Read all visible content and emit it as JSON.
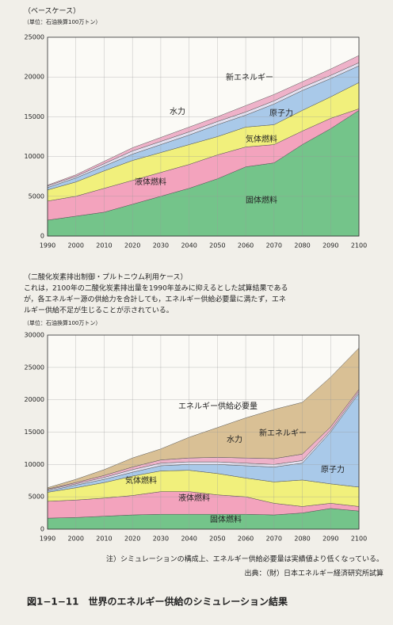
{
  "chart_data": [
    {
      "type": "stacked_area",
      "subtitle": "（ベースケース）",
      "unit": "（単位：石油換算100万トン）",
      "x": [
        1990,
        2000,
        2010,
        2020,
        2030,
        2040,
        2050,
        2060,
        2070,
        2080,
        2090,
        2100
      ],
      "xlim": [
        1990,
        2100
      ],
      "xticks": [
        1990,
        2000,
        2010,
        2020,
        2030,
        2040,
        2050,
        2060,
        2070,
        2080,
        2090,
        2100
      ],
      "ylim": [
        0,
        25000
      ],
      "yticks": [
        0,
        5000,
        10000,
        15000,
        20000,
        25000
      ],
      "grid": true,
      "series": [
        {
          "name": "固体燃料",
          "color": "#74c48a",
          "values": [
            2000,
            2500,
            3000,
            4000,
            5000,
            6000,
            7200,
            8700,
            9200,
            11500,
            13500,
            15800
          ]
        },
        {
          "name": "液体燃料",
          "color": "#f3a3bd",
          "values": [
            2400,
            2500,
            3000,
            3000,
            3000,
            3000,
            3000,
            2500,
            2300,
            1700,
            1300,
            200
          ]
        },
        {
          "name": "気体燃料",
          "color": "#f1f07c",
          "values": [
            1400,
            1800,
            2200,
            2500,
            2500,
            2500,
            2300,
            2500,
            2500,
            2600,
            2700,
            3300
          ]
        },
        {
          "name": "原子力",
          "color": "#a9c9e9",
          "values": [
            300,
            500,
            600,
            800,
            1000,
            1200,
            1500,
            1500,
            2600,
            2500,
            2300,
            2100
          ]
        },
        {
          "name": "水力",
          "color": "#e2e0f0",
          "values": [
            200,
            200,
            300,
            400,
            400,
            400,
            400,
            400,
            400,
            400,
            400,
            400
          ]
        },
        {
          "name": "新エネルギー",
          "color": "#eeb2c9",
          "values": [
            100,
            200,
            300,
            400,
            500,
            600,
            600,
            800,
            800,
            700,
            800,
            900
          ]
        }
      ]
    },
    {
      "type": "stacked_area",
      "subtitle": "（二酸化炭素排出制御・プルトニウム利用ケース）",
      "description": [
        "これは，2100年の二酸化炭素排出量を1990年並みに抑えるとした試算結果である",
        "が，各エネルギー源の供給力を合計しても，エネルギー供給必要量に満たず，エネ",
        "ルギー供給不足が生じることが示されている。"
      ],
      "unit": "（単位：石油換算100万トン）",
      "x": [
        1990,
        2000,
        2010,
        2020,
        2030,
        2040,
        2050,
        2060,
        2070,
        2080,
        2090,
        2100
      ],
      "xlim": [
        1990,
        2100
      ],
      "xticks": [
        1990,
        2000,
        2010,
        2020,
        2030,
        2040,
        2050,
        2060,
        2070,
        2080,
        2090,
        2100
      ],
      "ylim": [
        0,
        30000
      ],
      "yticks": [
        0,
        5000,
        10000,
        15000,
        20000,
        25000,
        30000
      ],
      "grid": true,
      "series": [
        {
          "name": "固体燃料",
          "color": "#74c48a",
          "values": [
            1700,
            1800,
            2000,
            2200,
            2300,
            2300,
            2300,
            2300,
            2200,
            2500,
            3200,
            2800
          ]
        },
        {
          "name": "液体燃料",
          "color": "#f3a3bd",
          "values": [
            2600,
            2700,
            2800,
            3000,
            3500,
            3500,
            3000,
            2700,
            1800,
            1000,
            800,
            700
          ]
        },
        {
          "name": "気体燃料",
          "color": "#f1f07c",
          "values": [
            1400,
            1900,
            2400,
            3000,
            3200,
            3300,
            3300,
            2900,
            3300,
            4100,
            3000,
            3000
          ]
        },
        {
          "name": "原子力",
          "color": "#a9c9e9",
          "values": [
            200,
            400,
            500,
            600,
            800,
            900,
            1400,
            1900,
            2300,
            2600,
            8000,
            14500
          ]
        },
        {
          "name": "水力",
          "color": "#e2e0f0",
          "values": [
            200,
            200,
            300,
            400,
            400,
            400,
            400,
            400,
            400,
            400,
            300,
            300
          ]
        },
        {
          "name": "新エネルギー",
          "color": "#eeb2c9",
          "values": [
            100,
            200,
            300,
            400,
            500,
            600,
            700,
            800,
            900,
            1000,
            500,
            300
          ]
        },
        {
          "name": "エネルギー供給必要量",
          "color": "#d9c095",
          "values": [
            200,
            500,
            900,
            1400,
            1700,
            3200,
            4600,
            6200,
            7600,
            8000,
            7700,
            6400
          ]
        }
      ]
    }
  ],
  "note": "注）シミュレーションの構成上、エネルギー供給必要量は実績値より低くなっている。",
  "source": "出典：（財）日本エネルギー経済研究所試算",
  "caption": "図1−1−11　世界のエネルギー供給のシミュレーション結果"
}
